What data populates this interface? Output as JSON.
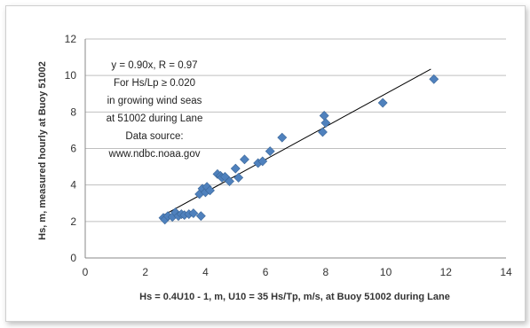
{
  "chart_data": {
    "type": "scatter",
    "xlabel": "Hs = 0.4U10 - 1, m, U10 = 35 Hs/Tp, m/s, at Buoy 51002 during Lane",
    "ylabel": "Hs, m, measured hourly at Buoy 51002",
    "xlim": [
      0,
      14
    ],
    "ylim": [
      0,
      12
    ],
    "xticks": [
      "0",
      "2",
      "4",
      "6",
      "8",
      "10",
      "12",
      "14"
    ],
    "yticks": [
      "0",
      "2",
      "4",
      "6",
      "8",
      "10",
      "12"
    ],
    "grid": "horizontal",
    "marker_color": "#4f81bd",
    "trendline": {
      "slope": 0.9,
      "x_range": [
        2.6,
        11.5
      ],
      "color": "#000000"
    },
    "annotation": [
      "y = 0.90x, R = 0.97",
      "For Hs/Lp ≥ 0.020",
      "in growing wind seas",
      "at 51002 during Lane",
      "Data source:",
      "www.ndbc.noaa.gov"
    ],
    "points": [
      {
        "x": 2.6,
        "y": 2.2
      },
      {
        "x": 2.65,
        "y": 2.1
      },
      {
        "x": 2.75,
        "y": 2.3
      },
      {
        "x": 2.9,
        "y": 2.25
      },
      {
        "x": 3.0,
        "y": 2.5
      },
      {
        "x": 3.1,
        "y": 2.3
      },
      {
        "x": 3.2,
        "y": 2.4
      },
      {
        "x": 3.3,
        "y": 2.35
      },
      {
        "x": 3.45,
        "y": 2.4
      },
      {
        "x": 3.6,
        "y": 2.45
      },
      {
        "x": 3.85,
        "y": 2.3
      },
      {
        "x": 3.8,
        "y": 3.5
      },
      {
        "x": 3.9,
        "y": 3.8
      },
      {
        "x": 4.0,
        "y": 3.6
      },
      {
        "x": 4.05,
        "y": 3.9
      },
      {
        "x": 4.15,
        "y": 3.7
      },
      {
        "x": 4.4,
        "y": 4.6
      },
      {
        "x": 4.5,
        "y": 4.5
      },
      {
        "x": 4.55,
        "y": 4.4
      },
      {
        "x": 4.65,
        "y": 4.45
      },
      {
        "x": 4.8,
        "y": 4.2
      },
      {
        "x": 5.0,
        "y": 4.9
      },
      {
        "x": 5.1,
        "y": 4.4
      },
      {
        "x": 5.3,
        "y": 5.4
      },
      {
        "x": 5.75,
        "y": 5.2
      },
      {
        "x": 5.9,
        "y": 5.3
      },
      {
        "x": 6.15,
        "y": 5.85
      },
      {
        "x": 6.55,
        "y": 6.6
      },
      {
        "x": 7.9,
        "y": 6.9
      },
      {
        "x": 7.95,
        "y": 7.8
      },
      {
        "x": 8.0,
        "y": 7.4
      },
      {
        "x": 9.9,
        "y": 8.5
      },
      {
        "x": 11.6,
        "y": 9.8
      }
    ]
  }
}
